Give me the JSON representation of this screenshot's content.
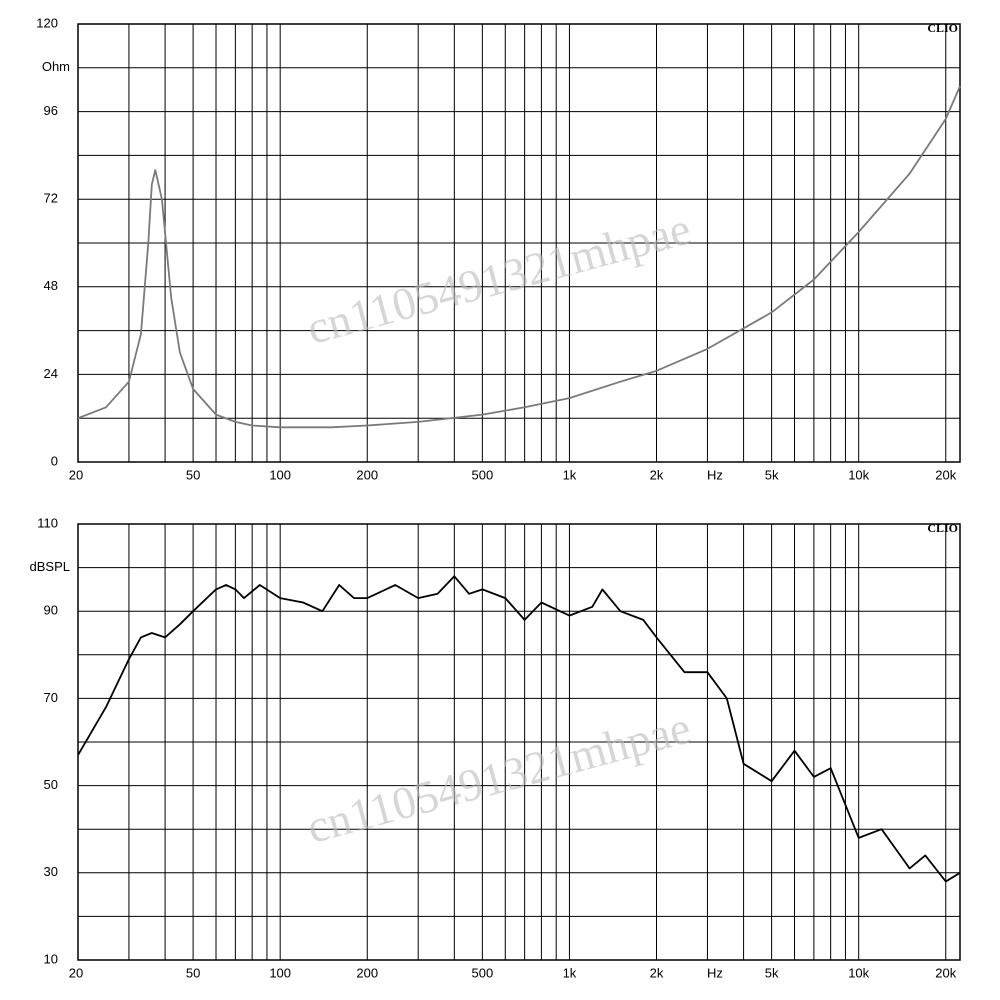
{
  "chart_data": [
    {
      "type": "line",
      "brand": "CLIO",
      "y_label": "Ohm",
      "x_label": "Hz",
      "watermark": "cn1105491321mhpae",
      "log_x": true,
      "grid": true,
      "xlim": [
        20,
        22400
      ],
      "xticks": [
        20,
        50,
        100,
        200,
        500,
        {
          "value": 1000,
          "label": "1k"
        },
        {
          "value": 2000,
          "label": "2k"
        },
        {
          "value": 5000,
          "label": "5k"
        },
        {
          "value": 10000,
          "label": "10k"
        },
        {
          "value": 20000,
          "label": "20k"
        }
      ],
      "xminorticks": [
        30,
        40,
        60,
        70,
        80,
        90,
        300,
        400,
        600,
        700,
        800,
        900,
        3000,
        4000,
        6000,
        7000,
        8000,
        9000
      ],
      "ylim": [
        0,
        120
      ],
      "yticks": [
        0,
        24,
        48,
        72,
        96,
        120
      ],
      "yminorticks": [
        12,
        36,
        60,
        84,
        108
      ],
      "series": [
        {
          "color": "#7a7a7a",
          "x": [
            20,
            25,
            30,
            33,
            35,
            36,
            37,
            39,
            42,
            45,
            50,
            60,
            70,
            80,
            100,
            150,
            200,
            300,
            500,
            700,
            1000,
            1500,
            2000,
            3000,
            5000,
            7000,
            10000,
            15000,
            20000,
            22400
          ],
          "values": [
            12,
            15,
            22,
            35,
            60,
            76,
            80,
            72,
            45,
            30,
            20,
            13,
            11,
            10,
            9.5,
            9.5,
            10,
            11,
            13,
            15,
            17.5,
            22,
            25,
            31,
            41,
            50,
            63,
            79,
            94,
            103
          ]
        }
      ]
    },
    {
      "type": "line",
      "brand": "CLIO",
      "y_label": "dBSPL",
      "x_label": "Hz",
      "watermark": "cn1105491321mhpae",
      "log_x": true,
      "grid": true,
      "xlim": [
        20,
        22400
      ],
      "xticks": [
        20,
        50,
        100,
        200,
        500,
        {
          "value": 1000,
          "label": "1k"
        },
        {
          "value": 2000,
          "label": "2k"
        },
        {
          "value": 5000,
          "label": "5k"
        },
        {
          "value": 10000,
          "label": "10k"
        },
        {
          "value": 20000,
          "label": "20k"
        }
      ],
      "xminorticks": [
        30,
        40,
        60,
        70,
        80,
        90,
        300,
        400,
        600,
        700,
        800,
        900,
        3000,
        4000,
        6000,
        7000,
        8000,
        9000
      ],
      "ylim": [
        10,
        110
      ],
      "yticks": [
        10,
        30,
        50,
        70,
        90,
        110
      ],
      "yminorticks": [
        20,
        40,
        60,
        80,
        100
      ],
      "series": [
        {
          "color": "#000000",
          "x": [
            20,
            25,
            30,
            33,
            36,
            40,
            45,
            50,
            60,
            65,
            70,
            75,
            85,
            100,
            120,
            140,
            160,
            180,
            200,
            250,
            300,
            350,
            400,
            450,
            500,
            600,
            700,
            800,
            1000,
            1200,
            1300,
            1500,
            1800,
            2000,
            2500,
            3000,
            3500,
            4000,
            5000,
            6000,
            7000,
            8000,
            10000,
            12000,
            15000,
            17000,
            20000,
            22400
          ],
          "values": [
            57,
            68,
            79,
            84,
            85,
            84,
            87,
            90,
            95,
            96,
            95,
            93,
            96,
            93,
            92,
            90,
            96,
            93,
            93,
            96,
            93,
            94,
            98,
            94,
            95,
            93,
            88,
            92,
            89,
            91,
            95,
            90,
            88,
            84,
            76,
            76,
            70,
            55,
            51,
            58,
            52,
            54,
            38,
            40,
            31,
            34,
            28,
            30
          ]
        }
      ]
    }
  ]
}
